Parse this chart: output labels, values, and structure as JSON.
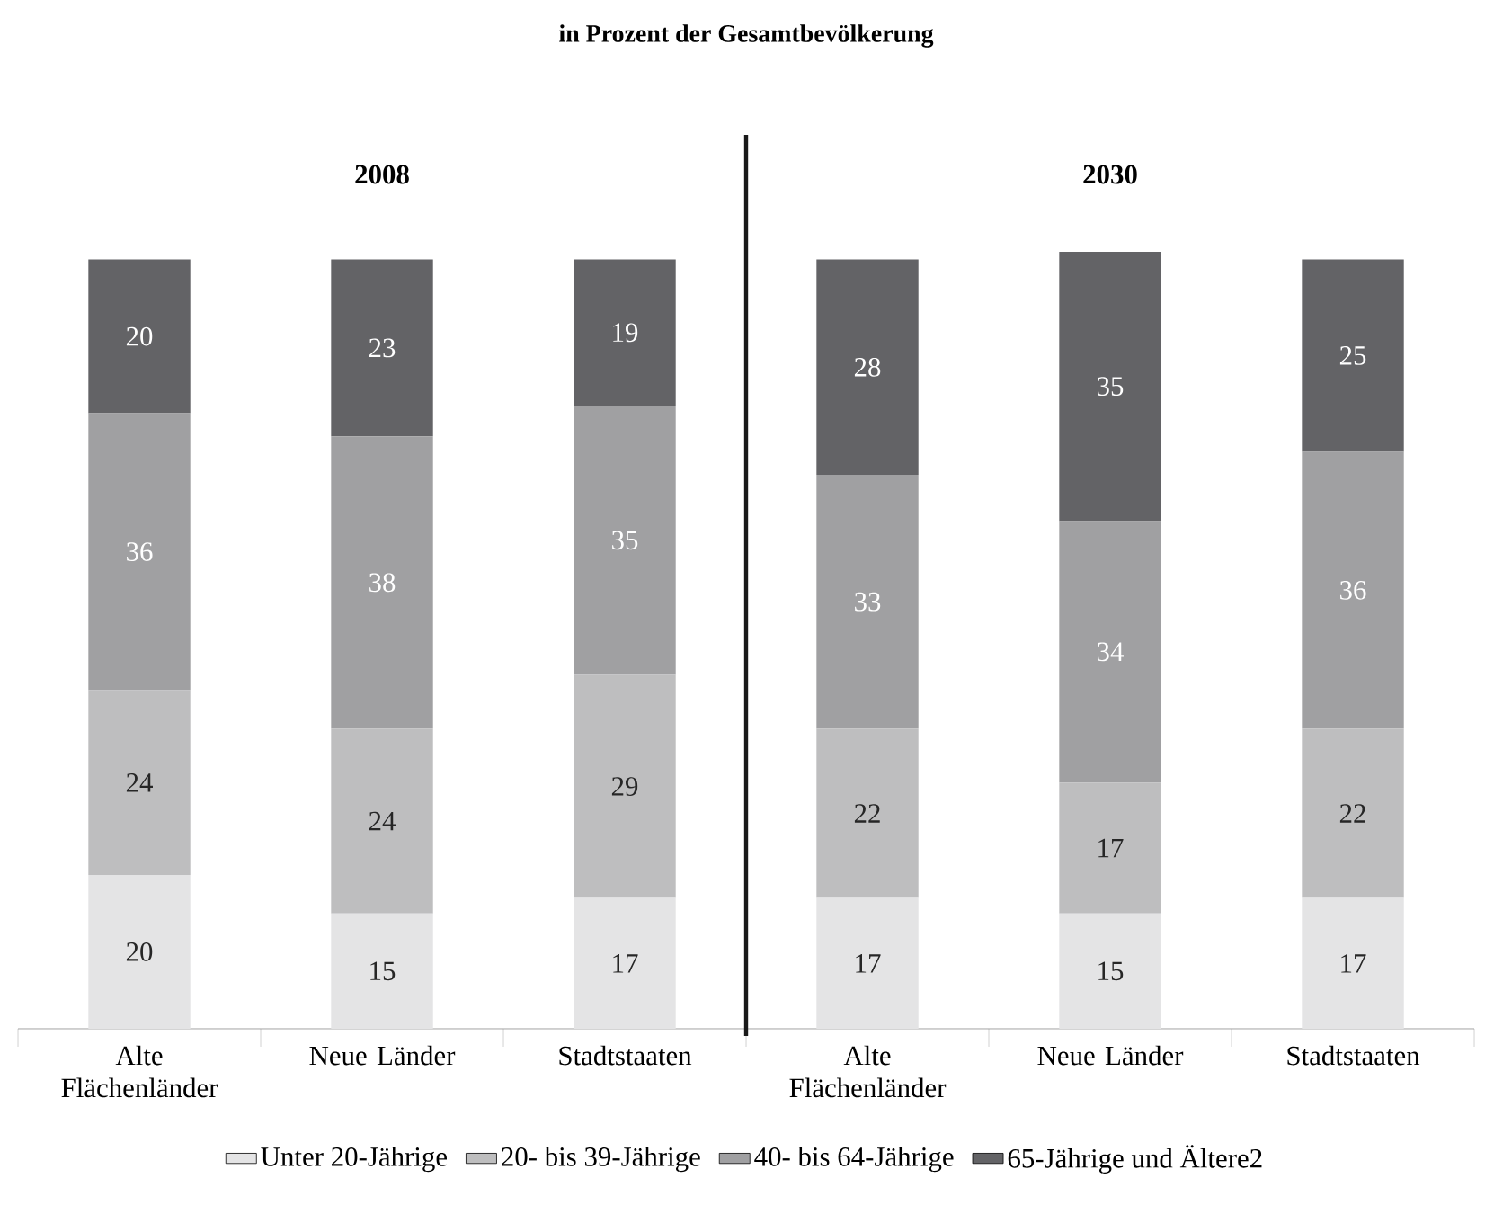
{
  "chart_data": {
    "type": "bar",
    "stacked": true,
    "title": "in Prozent der Gesamtbevölkerung",
    "categories": [
      "Alte Flächenländer",
      "Neue Länder",
      "Stadtstaaten",
      "Alte Flächenländer",
      "Neue Länder",
      "Stadtstaaten"
    ],
    "series": [
      {
        "name": "Unter 20-Jährige",
        "color": "#e4e4e5",
        "values": [
          20,
          15,
          17,
          17,
          15,
          17
        ]
      },
      {
        "name": "20- bis 39-Jährige",
        "color": "#bebebf",
        "values": [
          24,
          24,
          29,
          22,
          17,
          22
        ]
      },
      {
        "name": "40- bis 64-Jährige",
        "color": "#a0a0a2",
        "values": [
          36,
          38,
          35,
          33,
          34,
          36
        ]
      },
      {
        "name": "65-Jährige und Ältere2",
        "color": "#636366",
        "values": [
          20,
          23,
          19,
          28,
          35,
          25
        ]
      }
    ],
    "tick_labels": "x",
    "data_labels": true,
    "legend": "bottom",
    "annotations": [
      "2008",
      "2030"
    ]
  }
}
